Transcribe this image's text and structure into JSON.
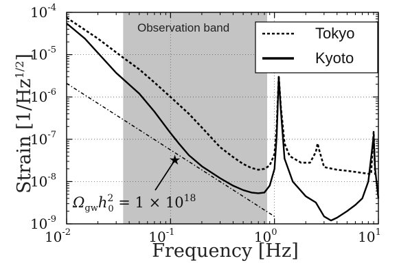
{
  "chart_data": {
    "type": "line",
    "xscale": "log",
    "yscale": "log",
    "xlim": [
      0.01,
      10
    ],
    "ylim": [
      1e-09,
      0.0001
    ],
    "xlabel": "Frequency [Hz]",
    "ylabel": "Strain [1/Hz^1/2]",
    "ylabel_parts": {
      "main": "Strain [1/Hz",
      "sup": "1/2",
      "close": "]"
    },
    "x_ticks": [
      {
        "base": "10",
        "exp": "-2",
        "value": 0.01
      },
      {
        "base": "10",
        "exp": "-1",
        "value": 0.1
      },
      {
        "base": "10",
        "exp": "0",
        "value": 1
      },
      {
        "base": "10",
        "exp": "1",
        "value": 10
      }
    ],
    "y_ticks": [
      {
        "base": "10",
        "exp": "-9",
        "value": 1e-09
      },
      {
        "base": "10",
        "exp": "-8",
        "value": 1e-08
      },
      {
        "base": "10",
        "exp": "-7",
        "value": 1e-07
      },
      {
        "base": "10",
        "exp": "-6",
        "value": 1e-06
      },
      {
        "base": "10",
        "exp": "-5",
        "value": 1e-05
      },
      {
        "base": "10",
        "exp": "-4",
        "value": 0.0001
      }
    ],
    "grid": "dotted",
    "legend_position": "top-right",
    "shaded_band": {
      "label": "Observation band",
      "x_range": [
        0.035,
        0.85
      ],
      "color": "#c4c4c4"
    },
    "series": [
      {
        "name": "Tokyo",
        "style": "dashed",
        "points": [
          [
            0.01,
            7.5e-05
          ],
          [
            0.02,
            2.4e-05
          ],
          [
            0.035,
            8.5e-06
          ],
          [
            0.05,
            4.5e-06
          ],
          [
            0.07,
            2.2e-06
          ],
          [
            0.1,
            1e-06
          ],
          [
            0.15,
            4e-07
          ],
          [
            0.2,
            1.9e-07
          ],
          [
            0.3,
            6.5e-08
          ],
          [
            0.4,
            3.8e-08
          ],
          [
            0.5,
            2.6e-08
          ],
          [
            0.6,
            2.1e-08
          ],
          [
            0.7,
            1.9e-08
          ],
          [
            0.8,
            2e-08
          ],
          [
            0.9,
            2.4e-08
          ],
          [
            1.0,
            4.5e-08
          ],
          [
            1.05,
            2e-07
          ],
          [
            1.1,
            3.2e-06
          ],
          [
            1.15,
            6e-07
          ],
          [
            1.25,
            8e-08
          ],
          [
            1.4,
            4e-08
          ],
          [
            1.8,
            2.8e-08
          ],
          [
            2.2,
            2.8e-08
          ],
          [
            2.5,
            5e-08
          ],
          [
            2.6,
            8e-08
          ],
          [
            2.7,
            5.5e-08
          ],
          [
            3.0,
            2.2e-08
          ],
          [
            4.0,
            1.9e-08
          ],
          [
            5.0,
            1.8e-08
          ],
          [
            7.0,
            1.6e-08
          ],
          [
            8.5,
            1.5e-08
          ],
          [
            9.0,
            1.5e-07
          ],
          [
            9.3,
            1.5e-08
          ],
          [
            10.0,
            1.6e-08
          ]
        ]
      },
      {
        "name": "Kyoto",
        "style": "solid",
        "points": [
          [
            0.01,
            5.5e-05
          ],
          [
            0.015,
            2.4e-05
          ],
          [
            0.02,
            1.1e-05
          ],
          [
            0.03,
            3.7e-06
          ],
          [
            0.05,
            1.2e-06
          ],
          [
            0.07,
            4.5e-07
          ],
          [
            0.1,
            1.4e-07
          ],
          [
            0.12,
            8e-08
          ],
          [
            0.15,
            4.2e-08
          ],
          [
            0.2,
            2.3e-08
          ],
          [
            0.3,
            1.2e-08
          ],
          [
            0.4,
            8e-09
          ],
          [
            0.5,
            6.3e-09
          ],
          [
            0.6,
            5.5e-09
          ],
          [
            0.7,
            5.3e-09
          ],
          [
            0.8,
            5.5e-09
          ],
          [
            0.9,
            8e-09
          ],
          [
            1.0,
            2e-08
          ],
          [
            1.05,
            1.2e-07
          ],
          [
            1.1,
            3e-06
          ],
          [
            1.15,
            5e-07
          ],
          [
            1.25,
            3.5e-08
          ],
          [
            1.5,
            1e-08
          ],
          [
            2.0,
            4.5e-09
          ],
          [
            2.5,
            3.2e-09
          ],
          [
            3.0,
            1.5e-09
          ],
          [
            3.5,
            1.2e-09
          ],
          [
            4.0,
            1.4e-09
          ],
          [
            5.0,
            2e-09
          ],
          [
            6.0,
            2.8e-09
          ],
          [
            7.0,
            4e-09
          ],
          [
            8.0,
            1e-08
          ],
          [
            9.0,
            1.2e-07
          ],
          [
            9.3,
            2e-08
          ],
          [
            10.0,
            4e-09
          ]
        ]
      },
      {
        "name": "",
        "style": "dashdot",
        "points": [
          [
            0.01,
            2.1e-06
          ],
          [
            1.0,
            1.5e-09
          ]
        ]
      }
    ],
    "annotation": {
      "text_parts": {
        "omega": "Ω",
        "omega_sub": "gw",
        "h": "h",
        "h_sup": "2",
        "h_sub": "0",
        "eq": " = 1 × 10",
        "exp": "18"
      },
      "target": [
        0.11,
        3.2e-08
      ],
      "marker": "star"
    }
  }
}
